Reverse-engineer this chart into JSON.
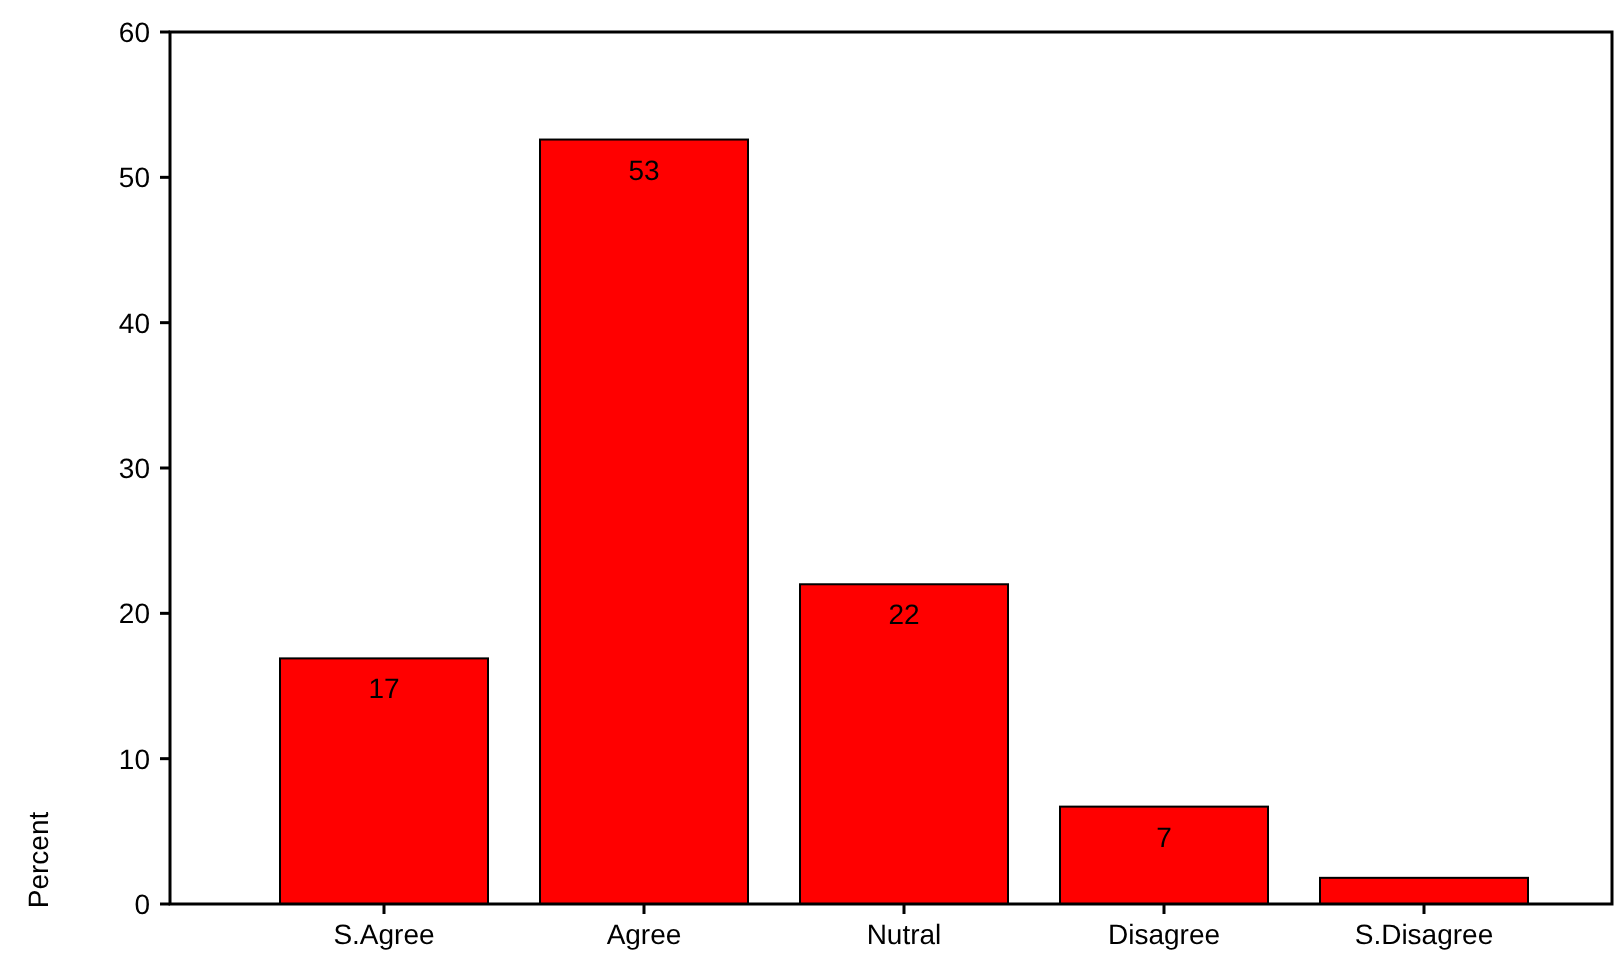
{
  "chart_data": {
    "type": "bar",
    "ylabel": "Percent",
    "categories": [
      "S.Agree",
      "Agree",
      "Nutral",
      "Disagree",
      "S.Disagree"
    ],
    "values": [
      16.9,
      52.6,
      22.0,
      6.7,
      1.8
    ],
    "value_labels": [
      "17",
      "53",
      "22",
      "7",
      null
    ],
    "color": "#ff0000",
    "ylim": [
      0,
      60
    ],
    "yticks": [
      0,
      10,
      20,
      30,
      40,
      50,
      60
    ],
    "grid": false
  }
}
